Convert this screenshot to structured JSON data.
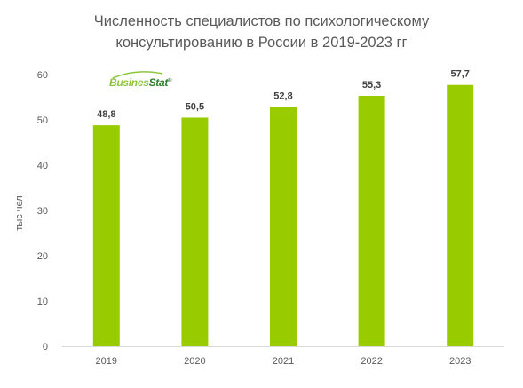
{
  "colors": {
    "bar": "#99cc00",
    "axis": "#d9d9d9",
    "tick_text": "#595959",
    "label_text": "#404040",
    "title_text": "#595959"
  },
  "logo": {
    "part_a": "Busines",
    "part_b": "Stat",
    "reg": "®"
  },
  "chart_data": {
    "type": "bar",
    "title_line1": "Численность специалистов по психологическому",
    "title_line2": "консультированию в России в 2019-2023 гг",
    "ylabel": "тыс чел",
    "xlabel": "",
    "categories": [
      "2019",
      "2020",
      "2021",
      "2022",
      "2023"
    ],
    "values": [
      48.8,
      50.5,
      52.8,
      55.3,
      57.7
    ],
    "data_labels": [
      "48,8",
      "50,5",
      "52,8",
      "55,3",
      "57,7"
    ],
    "ylim": [
      0,
      60
    ],
    "yticks": [
      0,
      10,
      20,
      30,
      40,
      50,
      60
    ],
    "grid": false,
    "legend": "none"
  }
}
